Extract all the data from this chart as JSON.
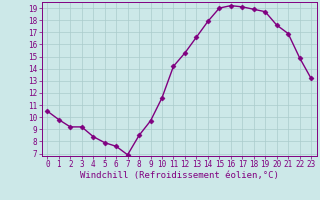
{
  "x": [
    0,
    1,
    2,
    3,
    4,
    5,
    6,
    7,
    8,
    9,
    10,
    11,
    12,
    13,
    14,
    15,
    16,
    17,
    18,
    19,
    20,
    21,
    22,
    23
  ],
  "y": [
    10.5,
    9.8,
    9.2,
    9.2,
    8.4,
    7.9,
    7.6,
    6.9,
    8.5,
    9.7,
    11.6,
    14.2,
    15.3,
    16.6,
    17.9,
    19.0,
    19.2,
    19.1,
    18.9,
    18.7,
    17.6,
    16.9,
    14.9,
    13.2
  ],
  "line_color": "#800080",
  "marker": "D",
  "marker_size": 2.5,
  "linewidth": 1.0,
  "bg_color": "#cce8e8",
  "grid_color": "#aacccc",
  "xlabel": "Windchill (Refroidissement éolien,°C)",
  "xlim": [
    -0.5,
    23.5
  ],
  "ylim": [
    6.8,
    19.5
  ],
  "yticks": [
    7,
    8,
    9,
    10,
    11,
    12,
    13,
    14,
    15,
    16,
    17,
    18,
    19
  ],
  "xticks": [
    0,
    1,
    2,
    3,
    4,
    5,
    6,
    7,
    8,
    9,
    10,
    11,
    12,
    13,
    14,
    15,
    16,
    17,
    18,
    19,
    20,
    21,
    22,
    23
  ],
  "tick_color": "#800080",
  "tick_fontsize": 5.5,
  "xlabel_fontsize": 6.5,
  "spine_color": "#800080"
}
